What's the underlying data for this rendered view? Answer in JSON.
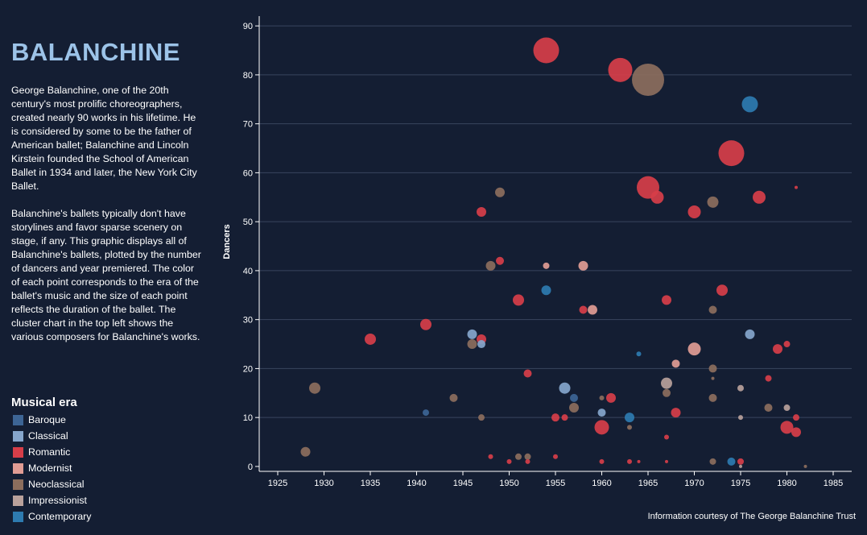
{
  "header": {
    "title": "BALANCHINE",
    "paragraph1": "George Balanchine, one of the 20th century's most prolific choreographers, created nearly 90 works in his lifetime. He is considered by some to be the father of American ballet; Balanchine and Lincoln Kirstein founded the School of American Ballet in 1934 and later, the New York City Ballet.",
    "paragraph2": "Balanchine's ballets typically don't have storylines and favor sparse scenery on stage, if any. This graphic displays all of Balanchine's ballets, plotted by the number of dancers and year premiered. The color of each point corresponds to the era of the ballet's music and the size of each point reflects the duration of the ballet. The cluster chart in the top left shows the various composers for Balanchine's works."
  },
  "legend": {
    "title": "Musical era",
    "items": [
      {
        "label": "Baroque",
        "color": "#3d6595"
      },
      {
        "label": "Classical",
        "color": "#86a6cc"
      },
      {
        "label": "Romantic",
        "color": "#d73e49"
      },
      {
        "label": "Modernist",
        "color": "#e19c94"
      },
      {
        "label": "Neoclassical",
        "color": "#8c6e5d"
      },
      {
        "label": "Impressionist",
        "color": "#b9a19b"
      },
      {
        "label": "Contemporary",
        "color": "#2e7bb0"
      }
    ]
  },
  "credit": "Information courtesy of The George Balanchine Trust",
  "chart_data": {
    "type": "scatter",
    "xlabel": "",
    "ylabel": "Dancers",
    "xlim": [
      1923,
      1987
    ],
    "ylim": [
      -1,
      92
    ],
    "xticks": [
      1925,
      1930,
      1935,
      1940,
      1945,
      1950,
      1955,
      1960,
      1965,
      1970,
      1975,
      1980,
      1985
    ],
    "yticks": [
      0,
      10,
      20,
      30,
      40,
      50,
      60,
      70,
      80,
      90
    ],
    "grid": "horizontal",
    "size_encoding": "duration",
    "color_encoding": "musical era",
    "points": [
      {
        "x": 1928,
        "y": 3,
        "era": "Neoclassical",
        "size": 6
      },
      {
        "x": 1929,
        "y": 16,
        "era": "Neoclassical",
        "size": 7
      },
      {
        "x": 1935,
        "y": 26,
        "era": "Romantic",
        "size": 7
      },
      {
        "x": 1941,
        "y": 11,
        "era": "Baroque",
        "size": 4
      },
      {
        "x": 1941,
        "y": 29,
        "era": "Romantic",
        "size": 7
      },
      {
        "x": 1944,
        "y": 14,
        "era": "Neoclassical",
        "size": 5
      },
      {
        "x": 1946,
        "y": 27,
        "era": "Classical",
        "size": 6
      },
      {
        "x": 1946,
        "y": 25,
        "era": "Neoclassical",
        "size": 6
      },
      {
        "x": 1947,
        "y": 52,
        "era": "Romantic",
        "size": 6
      },
      {
        "x": 1947,
        "y": 26,
        "era": "Romantic",
        "size": 6
      },
      {
        "x": 1947,
        "y": 25,
        "era": "Classical",
        "size": 5
      },
      {
        "x": 1947,
        "y": 10,
        "era": "Neoclassical",
        "size": 4
      },
      {
        "x": 1948,
        "y": 41,
        "era": "Neoclassical",
        "size": 6
      },
      {
        "x": 1948,
        "y": 2,
        "era": "Romantic",
        "size": 3
      },
      {
        "x": 1949,
        "y": 56,
        "era": "Neoclassical",
        "size": 6
      },
      {
        "x": 1949,
        "y": 42,
        "era": "Romantic",
        "size": 5
      },
      {
        "x": 1950,
        "y": 1,
        "era": "Romantic",
        "size": 3
      },
      {
        "x": 1951,
        "y": 34,
        "era": "Romantic",
        "size": 7
      },
      {
        "x": 1951,
        "y": 2,
        "era": "Neoclassical",
        "size": 4
      },
      {
        "x": 1952,
        "y": 19,
        "era": "Romantic",
        "size": 5
      },
      {
        "x": 1952,
        "y": 2,
        "era": "Neoclassical",
        "size": 4
      },
      {
        "x": 1952,
        "y": 1,
        "era": "Romantic",
        "size": 3
      },
      {
        "x": 1954,
        "y": 85,
        "era": "Romantic",
        "size": 16
      },
      {
        "x": 1954,
        "y": 41,
        "era": "Modernist",
        "size": 4
      },
      {
        "x": 1954,
        "y": 36,
        "era": "Contemporary",
        "size": 6
      },
      {
        "x": 1955,
        "y": 10,
        "era": "Romantic",
        "size": 5
      },
      {
        "x": 1955,
        "y": 2,
        "era": "Romantic",
        "size": 3
      },
      {
        "x": 1956,
        "y": 16,
        "era": "Classical",
        "size": 7
      },
      {
        "x": 1956,
        "y": 10,
        "era": "Romantic",
        "size": 4
      },
      {
        "x": 1957,
        "y": 14,
        "era": "Baroque",
        "size": 5
      },
      {
        "x": 1957,
        "y": 12,
        "era": "Neoclassical",
        "size": 6
      },
      {
        "x": 1958,
        "y": 41,
        "era": "Modernist",
        "size": 6
      },
      {
        "x": 1958,
        "y": 32,
        "era": "Romantic",
        "size": 5
      },
      {
        "x": 1959,
        "y": 32,
        "era": "Modernist",
        "size": 6
      },
      {
        "x": 1960,
        "y": 11,
        "era": "Classical",
        "size": 5
      },
      {
        "x": 1960,
        "y": 8,
        "era": "Romantic",
        "size": 9
      },
      {
        "x": 1960,
        "y": 14,
        "era": "Neoclassical",
        "size": 3
      },
      {
        "x": 1960,
        "y": 1,
        "era": "Romantic",
        "size": 3
      },
      {
        "x": 1961,
        "y": 14,
        "era": "Romantic",
        "size": 6
      },
      {
        "x": 1962,
        "y": 81,
        "era": "Romantic",
        "size": 15
      },
      {
        "x": 1963,
        "y": 10,
        "era": "Contemporary",
        "size": 6
      },
      {
        "x": 1963,
        "y": 8,
        "era": "Neoclassical",
        "size": 3
      },
      {
        "x": 1963,
        "y": 1,
        "era": "Romantic",
        "size": 3
      },
      {
        "x": 1964,
        "y": 23,
        "era": "Contemporary",
        "size": 3
      },
      {
        "x": 1964,
        "y": 1,
        "era": "Romantic",
        "size": 2
      },
      {
        "x": 1965,
        "y": 79,
        "era": "Neoclassical",
        "size": 20
      },
      {
        "x": 1965,
        "y": 57,
        "era": "Romantic",
        "size": 14
      },
      {
        "x": 1966,
        "y": 55,
        "era": "Romantic",
        "size": 8
      },
      {
        "x": 1967,
        "y": 34,
        "era": "Romantic",
        "size": 6
      },
      {
        "x": 1967,
        "y": 17,
        "era": "Impressionist",
        "size": 7
      },
      {
        "x": 1967,
        "y": 15,
        "era": "Neoclassical",
        "size": 5
      },
      {
        "x": 1967,
        "y": 6,
        "era": "Romantic",
        "size": 3
      },
      {
        "x": 1967,
        "y": 1,
        "era": "Romantic",
        "size": 2
      },
      {
        "x": 1968,
        "y": 21,
        "era": "Modernist",
        "size": 5
      },
      {
        "x": 1968,
        "y": 11,
        "era": "Romantic",
        "size": 6
      },
      {
        "x": 1970,
        "y": 52,
        "era": "Romantic",
        "size": 8
      },
      {
        "x": 1970,
        "y": 24,
        "era": "Modernist",
        "size": 8
      },
      {
        "x": 1972,
        "y": 54,
        "era": "Neoclassical",
        "size": 7
      },
      {
        "x": 1972,
        "y": 32,
        "era": "Neoclassical",
        "size": 5
      },
      {
        "x": 1972,
        "y": 20,
        "era": "Neoclassical",
        "size": 5
      },
      {
        "x": 1972,
        "y": 18,
        "era": "Neoclassical",
        "size": 2
      },
      {
        "x": 1972,
        "y": 14,
        "era": "Neoclassical",
        "size": 5
      },
      {
        "x": 1972,
        "y": 1,
        "era": "Neoclassical",
        "size": 4
      },
      {
        "x": 1973,
        "y": 36,
        "era": "Romantic",
        "size": 7
      },
      {
        "x": 1974,
        "y": 64,
        "era": "Romantic",
        "size": 16
      },
      {
        "x": 1974,
        "y": 1,
        "era": "Contemporary",
        "size": 5
      },
      {
        "x": 1975,
        "y": 16,
        "era": "Impressionist",
        "size": 4
      },
      {
        "x": 1975,
        "y": 10,
        "era": "Impressionist",
        "size": 3
      },
      {
        "x": 1975,
        "y": 1,
        "era": "Romantic",
        "size": 4
      },
      {
        "x": 1975,
        "y": 0,
        "era": "Impressionist",
        "size": 2
      },
      {
        "x": 1976,
        "y": 74,
        "era": "Contemporary",
        "size": 10
      },
      {
        "x": 1976,
        "y": 27,
        "era": "Classical",
        "size": 6
      },
      {
        "x": 1977,
        "y": 55,
        "era": "Romantic",
        "size": 8
      },
      {
        "x": 1978,
        "y": 18,
        "era": "Romantic",
        "size": 4
      },
      {
        "x": 1978,
        "y": 12,
        "era": "Neoclassical",
        "size": 5
      },
      {
        "x": 1979,
        "y": 24,
        "era": "Romantic",
        "size": 6
      },
      {
        "x": 1980,
        "y": 25,
        "era": "Romantic",
        "size": 4
      },
      {
        "x": 1980,
        "y": 12,
        "era": "Impressionist",
        "size": 4
      },
      {
        "x": 1980,
        "y": 8,
        "era": "Romantic",
        "size": 8
      },
      {
        "x": 1981,
        "y": 57,
        "era": "Romantic",
        "size": 2
      },
      {
        "x": 1981,
        "y": 10,
        "era": "Romantic",
        "size": 4
      },
      {
        "x": 1981,
        "y": 7,
        "era": "Romantic",
        "size": 6
      },
      {
        "x": 1982,
        "y": 0,
        "era": "Neoclassical",
        "size": 2
      }
    ]
  }
}
